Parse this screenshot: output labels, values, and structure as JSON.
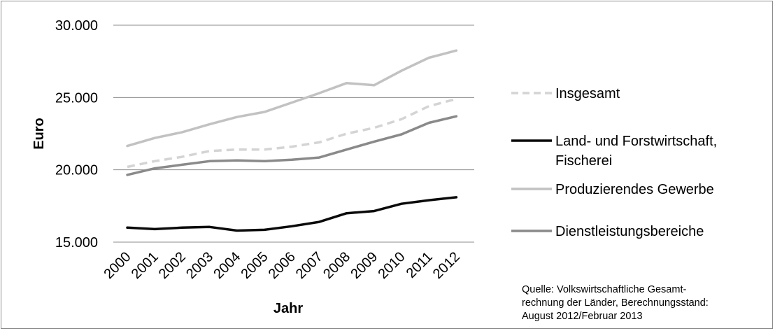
{
  "chart_data": {
    "type": "line",
    "title": "",
    "xlabel": "Jahr",
    "ylabel": "Euro",
    "ylim": [
      15000,
      30000
    ],
    "y_ticks": [
      15000,
      20000,
      25000,
      30000
    ],
    "y_tick_labels": [
      "15.000",
      "20.000",
      "25.000",
      "30.000"
    ],
    "grid": true,
    "legend_position": "right",
    "x": [
      "2000",
      "2001",
      "2002",
      "2003",
      "2004",
      "2005",
      "2006",
      "2007",
      "2008",
      "2009",
      "2010",
      "2011",
      "2012"
    ],
    "series": [
      {
        "name": "Insgesamt",
        "legend_lines": [
          "Insgesamt"
        ],
        "color": "#d4d4d4",
        "dashed": true,
        "values": [
          20200,
          20600,
          20900,
          21300,
          21400,
          21400,
          21600,
          21900,
          22500,
          22900,
          23500,
          24400,
          24900
        ]
      },
      {
        "name": "Land- und Forstwirtschaft, Fischerei",
        "legend_lines": [
          "Land- und Forstwirtschaft,",
          "Fischerei"
        ],
        "color": "#0a0a0a",
        "dashed": false,
        "values": [
          16000,
          15900,
          16000,
          16050,
          15800,
          15850,
          16100,
          16400,
          17000,
          17150,
          17650,
          17900,
          18100
        ]
      },
      {
        "name": "Produzierendes Gewerbe",
        "legend_lines": [
          "Produzierendes Gewerbe"
        ],
        "color": "#c2c2c2",
        "dashed": false,
        "values": [
          21650,
          22200,
          22600,
          23150,
          23650,
          24000,
          24650,
          25300,
          26000,
          25850,
          26850,
          27750,
          28250
        ]
      },
      {
        "name": "Dienstleistungsbereiche",
        "legend_lines": [
          "Dienstleistungsbereiche"
        ],
        "color": "#8a8a8a",
        "dashed": false,
        "values": [
          19650,
          20100,
          20350,
          20600,
          20650,
          20600,
          20700,
          20850,
          21400,
          21950,
          22450,
          23250,
          23700
        ]
      }
    ],
    "annotation_lines": [
      "Quelle: Volkswirtschaftliche Gesamt-",
      "rechnung der Länder, Berechnungsstand:",
      "August 2012/Februar 2013"
    ]
  }
}
